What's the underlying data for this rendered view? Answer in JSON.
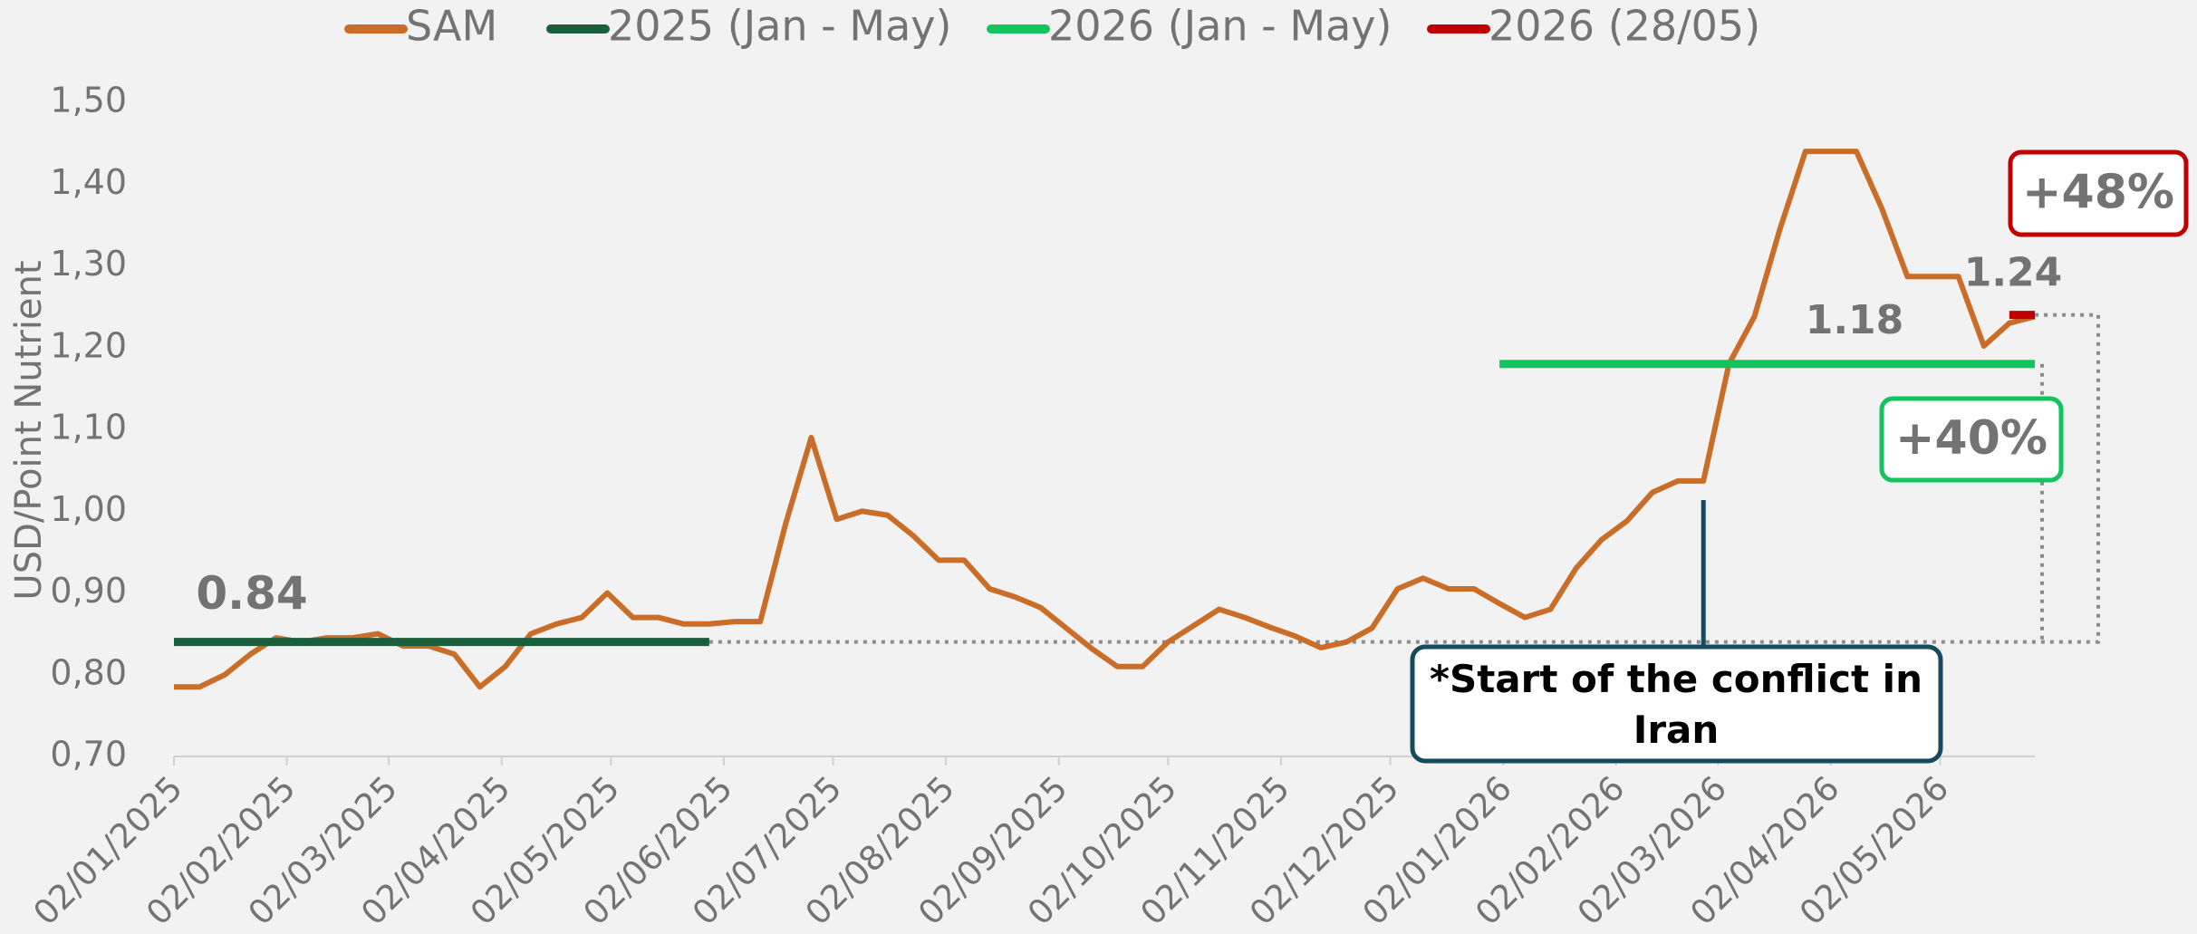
{
  "chart_data": {
    "type": "line",
    "y_axis_label": "USD/Point Nutrient",
    "x": [
      "02/01/2025",
      "09/01/2025",
      "16/01/2025",
      "23/01/2025",
      "30/01/2025",
      "06/02/2025",
      "13/02/2025",
      "20/02/2025",
      "27/02/2025",
      "06/03/2025",
      "13/03/2025",
      "20/03/2025",
      "27/03/2025",
      "03/04/2025",
      "10/04/2025",
      "17/04/2025",
      "24/04/2025",
      "01/05/2025",
      "08/05/2025",
      "15/05/2025",
      "22/05/2025",
      "29/05/2025",
      "05/06/2025",
      "12/06/2025",
      "19/06/2025",
      "26/06/2025",
      "03/07/2025",
      "10/07/2025",
      "17/07/2025",
      "24/07/2025",
      "31/07/2025",
      "07/08/2025",
      "14/08/2025",
      "21/08/2025",
      "28/08/2025",
      "04/09/2025",
      "11/09/2025",
      "18/09/2025",
      "25/09/2025",
      "02/10/2025",
      "09/10/2025",
      "16/10/2025",
      "23/10/2025",
      "30/10/2025",
      "06/11/2025",
      "13/11/2025",
      "20/11/2025",
      "27/11/2025",
      "04/12/2025",
      "11/12/2025",
      "18/12/2025",
      "25/12/2025",
      "01/01/2026",
      "08/01/2026",
      "15/01/2026",
      "22/01/2026",
      "29/01/2026",
      "05/02/2026",
      "12/02/2026",
      "19/02/2026",
      "26/02/2026",
      "05/03/2026",
      "12/03/2026",
      "19/03/2026",
      "26/03/2026",
      "02/04/2026",
      "09/04/2026",
      "16/04/2026",
      "23/04/2026",
      "30/04/2026",
      "07/05/2026",
      "14/05/2026",
      "21/05/2026",
      "28/05/2026"
    ],
    "series": [
      {
        "name": "SAM",
        "color": "#c96d28",
        "values": [
          0.785,
          0.785,
          0.8,
          0.825,
          0.845,
          0.84,
          0.845,
          0.845,
          0.85,
          0.835,
          0.835,
          0.825,
          0.785,
          0.81,
          0.85,
          0.862,
          0.87,
          0.9,
          0.87,
          0.87,
          0.862,
          0.862,
          0.865,
          0.865,
          0.985,
          1.09,
          0.99,
          1.0,
          0.995,
          0.97,
          0.94,
          0.94,
          0.905,
          0.895,
          0.882,
          0.857,
          0.832,
          0.81,
          0.81,
          0.84,
          0.86,
          0.88,
          0.87,
          0.858,
          0.847,
          0.833,
          0.84,
          0.857,
          0.905,
          0.918,
          0.905,
          0.905,
          0.887,
          0.87,
          0.88,
          0.93,
          0.965,
          0.988,
          1.023,
          1.037,
          1.037,
          1.18,
          1.238,
          1.345,
          1.44,
          1.44,
          1.44,
          1.37,
          1.287,
          1.287,
          1.287,
          1.202,
          1.23,
          1.238
        ]
      },
      {
        "name": "2025 (Jan - May)",
        "color": "#1b5e3b",
        "x": [
          "02/01/2025",
          "29/05/2025"
        ],
        "values": [
          0.84,
          0.84
        ]
      },
      {
        "name": "2026 (Jan - May)",
        "color": "#12c45e",
        "x": [
          "01/01/2026",
          "28/05/2026"
        ],
        "values": [
          1.18,
          1.18
        ]
      },
      {
        "name": "2026 (28/05)",
        "color": "#c00000",
        "x": [
          "21/05/2026",
          "28/05/2026"
        ],
        "values": [
          1.24,
          1.24
        ]
      }
    ],
    "xlim": [
      "02/01/2025",
      "28/05/2026"
    ],
    "xticks": [
      "02/01/2025",
      "02/02/2025",
      "02/03/2025",
      "02/04/2025",
      "02/05/2025",
      "02/06/2025",
      "02/07/2025",
      "02/08/2025",
      "02/09/2025",
      "02/10/2025",
      "02/11/2025",
      "02/12/2025",
      "02/01/2026",
      "02/02/2026",
      "02/03/2026",
      "02/04/2026",
      "02/05/2026"
    ],
    "ylim": [
      0.7,
      1.5
    ],
    "yticks": [
      {
        "value": 0.7,
        "label": "0,70"
      },
      {
        "value": 0.8,
        "label": "0,80"
      },
      {
        "value": 0.9,
        "label": "0,90"
      },
      {
        "value": 1.0,
        "label": "1,00"
      },
      {
        "value": 1.1,
        "label": "1,10"
      },
      {
        "value": 1.2,
        "label": "1,20"
      },
      {
        "value": 1.3,
        "label": "1,30"
      },
      {
        "value": 1.4,
        "label": "1,40"
      },
      {
        "value": 1.5,
        "label": "1,50"
      }
    ],
    "grid": false,
    "legend": "top",
    "annotations": [
      {
        "text": "+48%",
        "color": "#c00000"
      },
      {
        "text": "+40%",
        "color": "#12c45e"
      },
      {
        "text": "*Start of the conflict in Iran",
        "x": "26/02/2026",
        "color": "#164a5e"
      }
    ]
  }
}
